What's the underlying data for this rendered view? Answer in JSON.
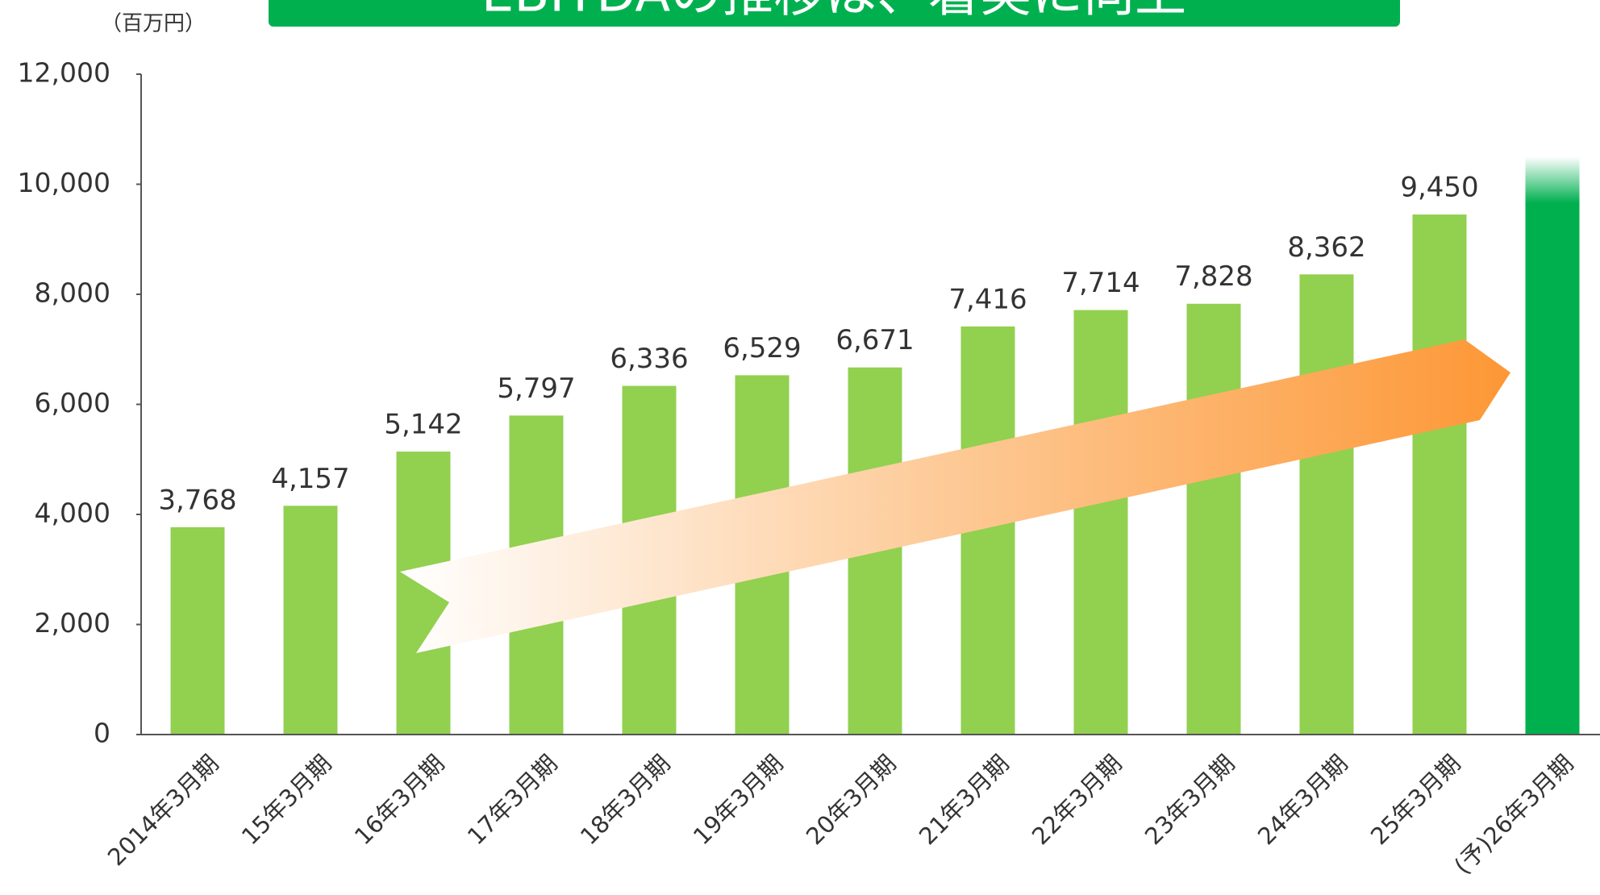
{
  "chart_data": {
    "type": "bar",
    "title": "EBITDAの推移は、着実に向上",
    "unit_label": "（百万円）",
    "categories": [
      "2014年3月期",
      "15年3月期",
      "16年3月期",
      "17年3月期",
      "18年3月期",
      "19年3月期",
      "20年3月期",
      "21年3月期",
      "22年3月期",
      "23年3月期",
      "24年3月期",
      "25年3月期",
      "(予)26年3月期"
    ],
    "values": [
      3768,
      4157,
      5142,
      5797,
      6336,
      6529,
      6671,
      7416,
      7714,
      7828,
      8362,
      9450,
      10500
    ],
    "value_labels": [
      "3,768",
      "4,157",
      "5,142",
      "5,797",
      "6,336",
      "6,529",
      "6,671",
      "7,416",
      "7,714",
      "7,828",
      "8,362",
      "9,450",
      null
    ],
    "colors": [
      "#92d050",
      "#92d050",
      "#92d050",
      "#92d050",
      "#92d050",
      "#92d050",
      "#92d050",
      "#92d050",
      "#92d050",
      "#92d050",
      "#92d050",
      "#92d050",
      "#00b04f"
    ],
    "ylim": [
      0,
      12000
    ],
    "yticks": [
      0,
      {
        "value": 2000,
        "label": "2,000"
      },
      {
        "value": 4000,
        "label": "4,000"
      },
      {
        "value": 6000,
        "label": "6,000"
      },
      {
        "value": 8000,
        "label": "8,000"
      },
      {
        "value": 10000,
        "label": "10,000"
      },
      {
        "value": 12000,
        "label": "12,000"
      }
    ],
    "grid": false
  }
}
